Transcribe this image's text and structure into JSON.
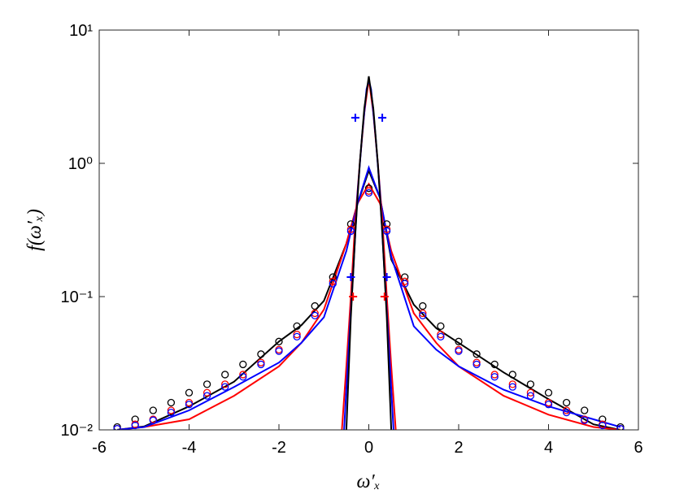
{
  "chart_data": {
    "type": "line",
    "yscale": "log",
    "xlabel": "ω′ₓ",
    "ylabel": "f(ω′ₓ)",
    "xlim": [
      -6,
      6
    ],
    "xticks": [
      -6,
      -4,
      -2,
      0,
      2,
      4,
      6
    ],
    "ylim": [
      0.01,
      10
    ],
    "yticks": [
      {
        "value": 0.01,
        "label": "10⁻²"
      },
      {
        "value": 0.1,
        "label": "10⁻¹"
      },
      {
        "value": 1,
        "label": "10⁰"
      },
      {
        "value": 10,
        "label": "10¹"
      }
    ],
    "series": [
      {
        "style": "line",
        "color": "#000000",
        "x": [
          -5.6,
          -5,
          -4,
          -3,
          -2,
          -1.5,
          -1,
          -0.5,
          -0.25,
          0,
          0.25,
          0.5,
          1,
          1.5,
          2,
          3,
          4,
          5,
          5.6
        ],
        "values": [
          0.01,
          0.0106,
          0.015,
          0.023,
          0.046,
          0.061,
          0.093,
          0.25,
          0.5,
          0.88,
          0.55,
          0.19,
          0.087,
          0.058,
          0.045,
          0.027,
          0.017,
          0.011,
          0.01
        ]
      },
      {
        "style": "line",
        "color": "#ff0000",
        "x": [
          -5.6,
          -5,
          -4,
          -3,
          -2,
          -1.5,
          -1,
          -0.5,
          -0.25,
          0,
          0.25,
          0.5,
          1,
          1.5,
          2,
          3,
          4,
          5,
          5.6
        ],
        "values": [
          0.01,
          0.0105,
          0.012,
          0.018,
          0.03,
          0.045,
          0.08,
          0.25,
          0.5,
          0.7,
          0.5,
          0.22,
          0.075,
          0.045,
          0.03,
          0.018,
          0.013,
          0.0105,
          0.01
        ]
      },
      {
        "style": "line",
        "color": "#0000ff",
        "x": [
          -5.6,
          -5,
          -4,
          -3,
          -2,
          -1.5,
          -1,
          -0.5,
          -0.25,
          0,
          0.25,
          0.5,
          1,
          1.5,
          2,
          3,
          4,
          5,
          5.6
        ],
        "values": [
          0.01,
          0.0105,
          0.014,
          0.021,
          0.032,
          0.045,
          0.07,
          0.22,
          0.5,
          0.93,
          0.55,
          0.2,
          0.06,
          0.04,
          0.03,
          0.02,
          0.015,
          0.012,
          0.0105
        ]
      },
      {
        "style": "line",
        "color": "#ff0000",
        "x": [
          -0.6,
          -0.5,
          -0.4,
          -0.3,
          -0.2,
          -0.1,
          0,
          0.1,
          0.2,
          0.3,
          0.4,
          0.5,
          0.6
        ],
        "values": [
          0.01,
          0.03,
          0.1,
          0.38,
          1.0,
          2.4,
          4.3,
          2.4,
          1.0,
          0.38,
          0.1,
          0.03,
          0.01
        ]
      },
      {
        "style": "line",
        "color": "#0000ff",
        "x": [
          -0.55,
          -0.45,
          -0.35,
          -0.25,
          -0.15,
          -0.05,
          0,
          0.05,
          0.15,
          0.25,
          0.35,
          0.45,
          0.55
        ],
        "values": [
          0.01,
          0.04,
          0.15,
          0.6,
          1.6,
          3.6,
          4.2,
          3.6,
          1.6,
          0.6,
          0.15,
          0.04,
          0.01
        ]
      },
      {
        "style": "line",
        "color": "#000000",
        "x": [
          -0.5,
          -0.4,
          -0.3,
          -0.2,
          -0.1,
          0,
          0.1,
          0.2,
          0.3,
          0.4,
          0.5
        ],
        "values": [
          0.01,
          0.07,
          0.3,
          1.0,
          2.6,
          4.5,
          2.6,
          1.0,
          0.3,
          0.07,
          0.01
        ]
      },
      {
        "style": "circle",
        "color": "#000000",
        "x": [
          -5.6,
          -5.2,
          -4.8,
          -4.4,
          -4,
          -3.6,
          -3.2,
          -2.8,
          -2.4,
          -2,
          -1.6,
          -1.2,
          -0.8,
          -0.4,
          0,
          0.4,
          0.8,
          1.2,
          1.6,
          2,
          2.4,
          2.8,
          3.2,
          3.6,
          4,
          4.4,
          4.8,
          5.2,
          5.6
        ],
        "values": [
          0.0105,
          0.012,
          0.014,
          0.016,
          0.019,
          0.022,
          0.026,
          0.031,
          0.037,
          0.046,
          0.06,
          0.085,
          0.14,
          0.35,
          0.65,
          0.35,
          0.14,
          0.085,
          0.06,
          0.046,
          0.037,
          0.031,
          0.026,
          0.022,
          0.019,
          0.016,
          0.014,
          0.012,
          0.0105
        ]
      },
      {
        "style": "circle",
        "color": "#ff0000",
        "x": [
          -5.6,
          -5.2,
          -4.8,
          -4.4,
          -4,
          -3.6,
          -3.2,
          -2.8,
          -2.4,
          -2,
          -1.6,
          -1.2,
          -0.8,
          -0.4,
          0,
          0.4,
          0.8,
          1.2,
          1.6,
          2,
          2.4,
          2.8,
          3.2,
          3.6,
          4,
          4.4,
          4.8,
          5.2,
          5.6
        ],
        "values": [
          0.0102,
          0.011,
          0.012,
          0.014,
          0.016,
          0.019,
          0.022,
          0.026,
          0.032,
          0.04,
          0.052,
          0.075,
          0.13,
          0.32,
          0.62,
          0.32,
          0.13,
          0.075,
          0.052,
          0.04,
          0.032,
          0.026,
          0.022,
          0.019,
          0.016,
          0.014,
          0.012,
          0.011,
          0.0102
        ]
      },
      {
        "style": "circle",
        "color": "#0000ff",
        "x": [
          -5.6,
          -5.2,
          -4.8,
          -4.4,
          -4,
          -3.6,
          -3.2,
          -2.8,
          -2.4,
          -2,
          -1.6,
          -1.2,
          -0.8,
          -0.4,
          0,
          0.4,
          0.8,
          1.2,
          1.6,
          2,
          2.4,
          2.8,
          3.2,
          3.6,
          4,
          4.4,
          4.8,
          5.2,
          5.6
        ],
        "values": [
          0.0102,
          0.0108,
          0.0118,
          0.0135,
          0.0155,
          0.018,
          0.021,
          0.025,
          0.031,
          0.039,
          0.05,
          0.072,
          0.125,
          0.31,
          0.6,
          0.31,
          0.125,
          0.072,
          0.05,
          0.039,
          0.031,
          0.025,
          0.021,
          0.018,
          0.0155,
          0.0135,
          0.0118,
          0.0108,
          0.0102
        ]
      },
      {
        "style": "plus",
        "color": "#0000ff",
        "x": [
          -0.3,
          0.3,
          -0.4,
          0.4
        ],
        "values": [
          2.2,
          2.2,
          0.14,
          0.14
        ]
      },
      {
        "style": "plus",
        "color": "#ff0000",
        "x": [
          -0.35,
          0.35
        ],
        "values": [
          0.1,
          0.1
        ]
      }
    ]
  }
}
